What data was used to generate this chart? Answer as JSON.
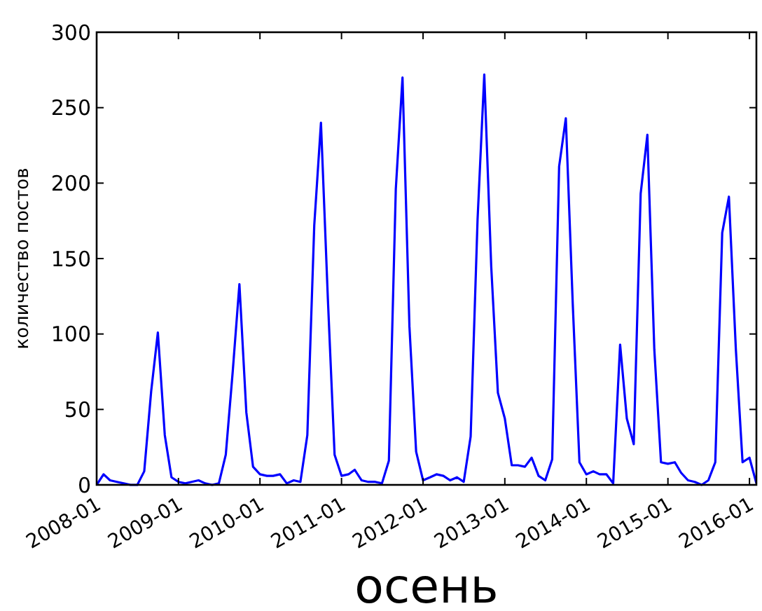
{
  "chart_data": {
    "type": "line",
    "xlabel": "осень",
    "ylabel": "количество постов",
    "xlim": [
      "2008-01",
      "2016-02"
    ],
    "xticks": [
      {
        "value": "2008-01",
        "label": "2008-01"
      },
      {
        "value": "2009-01",
        "label": "2009-01"
      },
      {
        "value": "2010-01",
        "label": "2010-01"
      },
      {
        "value": "2011-01",
        "label": "2011-01"
      },
      {
        "value": "2012-01",
        "label": "2012-01"
      },
      {
        "value": "2013-01",
        "label": "2013-01"
      },
      {
        "value": "2014-01",
        "label": "2014-01"
      },
      {
        "value": "2015-01",
        "label": "2015-01"
      },
      {
        "value": "2016-01",
        "label": "2016-01"
      }
    ],
    "x": [
      "2008-01",
      "2008-02",
      "2008-03",
      "2008-04",
      "2008-05",
      "2008-06",
      "2008-07",
      "2008-08",
      "2008-09",
      "2008-10",
      "2008-11",
      "2008-12",
      "2009-01",
      "2009-02",
      "2009-03",
      "2009-04",
      "2009-05",
      "2009-06",
      "2009-07",
      "2009-08",
      "2009-09",
      "2009-10",
      "2009-11",
      "2009-12",
      "2010-01",
      "2010-02",
      "2010-03",
      "2010-04",
      "2010-05",
      "2010-06",
      "2010-07",
      "2010-08",
      "2010-09",
      "2010-10",
      "2010-11",
      "2010-12",
      "2011-01",
      "2011-02",
      "2011-03",
      "2011-04",
      "2011-05",
      "2011-06",
      "2011-07",
      "2011-08",
      "2011-09",
      "2011-10",
      "2011-11",
      "2011-12",
      "2012-01",
      "2012-02",
      "2012-03",
      "2012-04",
      "2012-05",
      "2012-06",
      "2012-07",
      "2012-08",
      "2012-09",
      "2012-10",
      "2012-11",
      "2012-12",
      "2013-01",
      "2013-02",
      "2013-03",
      "2013-04",
      "2013-05",
      "2013-06",
      "2013-07",
      "2013-08",
      "2013-09",
      "2013-10",
      "2013-11",
      "2013-12",
      "2014-01",
      "2014-02",
      "2014-03",
      "2014-04",
      "2014-05",
      "2014-06",
      "2014-07",
      "2014-08",
      "2014-09",
      "2014-10",
      "2014-11",
      "2014-12",
      "2015-01",
      "2015-02",
      "2015-03",
      "2015-04",
      "2015-05",
      "2015-06",
      "2015-07",
      "2015-08",
      "2015-09",
      "2015-10",
      "2015-11",
      "2015-12",
      "2016-01",
      "2016-02"
    ],
    "ylim": [
      0,
      300
    ],
    "yticks": [
      0,
      50,
      100,
      150,
      200,
      250,
      300
    ],
    "grid": false,
    "marker": "none",
    "line_style": "solid",
    "series": [
      {
        "color": "#0000ff",
        "values": [
          0,
          7,
          3,
          2,
          1,
          0,
          0,
          9,
          62,
          101,
          33,
          5,
          2,
          1,
          2,
          3,
          1,
          0,
          1,
          20,
          75,
          133,
          48,
          12,
          7,
          6,
          6,
          7,
          1,
          3,
          2,
          33,
          172,
          240,
          123,
          20,
          6,
          7,
          10,
          3,
          2,
          2,
          1,
          16,
          196,
          270,
          105,
          22,
          3,
          5,
          7,
          6,
          3,
          5,
          2,
          32,
          176,
          272,
          145,
          61,
          44,
          13,
          13,
          12,
          18,
          6,
          3,
          17,
          211,
          243,
          120,
          15,
          7,
          9,
          7,
          7,
          1,
          93,
          44,
          27,
          193,
          232,
          90,
          15,
          14,
          15,
          8,
          3,
          2,
          0,
          3,
          15,
          167,
          191,
          90,
          15,
          18,
          1
        ]
      }
    ]
  }
}
